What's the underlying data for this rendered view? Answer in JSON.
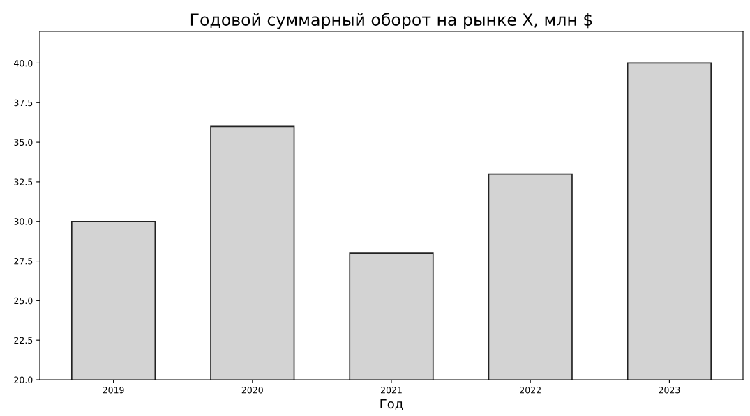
{
  "chart_data": {
    "type": "bar",
    "title": "Годовой суммарный оборот на рынке X, млн $",
    "xlabel": "Год",
    "categories": [
      "2019",
      "2020",
      "2021",
      "2022",
      "2023"
    ],
    "values": [
      30,
      36,
      28,
      33,
      40
    ],
    "color": "#d3d3d3",
    "ylim": [
      20,
      42
    ],
    "yticks": [
      {
        "value": 20,
        "label": "20.0"
      },
      {
        "value": 22.5,
        "label": "22.5"
      },
      {
        "value": 25,
        "label": "25.0"
      },
      {
        "value": 27.5,
        "label": "27.5"
      },
      {
        "value": 30,
        "label": "30.0"
      },
      {
        "value": 32.5,
        "label": "32.5"
      },
      {
        "value": 35,
        "label": "35.0"
      },
      {
        "value": 37.5,
        "label": "37.5"
      },
      {
        "value": 40,
        "label": "40.0"
      }
    ],
    "grid": false,
    "legend": false
  }
}
